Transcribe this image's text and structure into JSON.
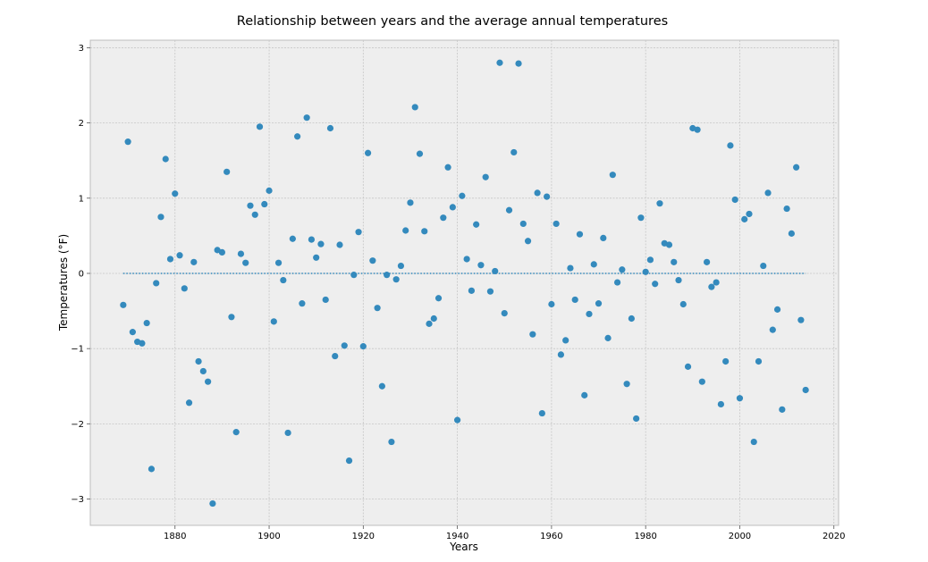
{
  "chart_data": {
    "type": "scatter",
    "title": "Relationship between years and the average annual temperatures",
    "xlabel": "Years",
    "ylabel": "Temperatures (°F)",
    "xlim": [
      1862,
      2021
    ],
    "ylim": [
      -3.35,
      3.1
    ],
    "xticks": [
      1880,
      1900,
      1920,
      1940,
      1960,
      1980,
      2000,
      2020
    ],
    "yticks": [
      -3,
      -2,
      -1,
      0,
      1,
      2,
      3
    ],
    "grid": true,
    "point_color": "#348abd",
    "reference_line": {
      "y": 0,
      "x_range": [
        1869,
        2014
      ],
      "style": "dotted",
      "color": "#348abd"
    },
    "points": [
      [
        1869,
        -0.42
      ],
      [
        1870,
        1.75
      ],
      [
        1871,
        -0.78
      ],
      [
        1872,
        -0.91
      ],
      [
        1873,
        -0.93
      ],
      [
        1874,
        -0.66
      ],
      [
        1875,
        -2.6
      ],
      [
        1876,
        -0.13
      ],
      [
        1877,
        0.75
      ],
      [
        1878,
        1.52
      ],
      [
        1879,
        0.19
      ],
      [
        1880,
        1.06
      ],
      [
        1881,
        0.24
      ],
      [
        1882,
        -0.2
      ],
      [
        1883,
        -1.72
      ],
      [
        1884,
        0.15
      ],
      [
        1885,
        -1.17
      ],
      [
        1886,
        -1.3
      ],
      [
        1887,
        -1.44
      ],
      [
        1888,
        -3.06
      ],
      [
        1889,
        0.31
      ],
      [
        1890,
        0.28
      ],
      [
        1891,
        1.35
      ],
      [
        1892,
        -0.58
      ],
      [
        1893,
        -2.11
      ],
      [
        1894,
        0.26
      ],
      [
        1895,
        0.14
      ],
      [
        1896,
        0.9
      ],
      [
        1897,
        0.78
      ],
      [
        1898,
        1.95
      ],
      [
        1899,
        0.92
      ],
      [
        1900,
        1.1
      ],
      [
        1901,
        -0.64
      ],
      [
        1902,
        0.14
      ],
      [
        1903,
        -0.09
      ],
      [
        1904,
        -2.12
      ],
      [
        1905,
        0.46
      ],
      [
        1906,
        1.82
      ],
      [
        1907,
        -0.4
      ],
      [
        1908,
        2.07
      ],
      [
        1909,
        0.45
      ],
      [
        1910,
        0.21
      ],
      [
        1911,
        0.39
      ],
      [
        1912,
        -0.35
      ],
      [
        1913,
        1.93
      ],
      [
        1914,
        -1.1
      ],
      [
        1915,
        0.38
      ],
      [
        1916,
        -0.96
      ],
      [
        1917,
        -2.49
      ],
      [
        1918,
        -0.02
      ],
      [
        1919,
        0.55
      ],
      [
        1920,
        -0.97
      ],
      [
        1921,
        1.6
      ],
      [
        1922,
        0.17
      ],
      [
        1923,
        -0.46
      ],
      [
        1924,
        -1.5
      ],
      [
        1925,
        -0.02
      ],
      [
        1926,
        -2.24
      ],
      [
        1927,
        -0.08
      ],
      [
        1928,
        0.1
      ],
      [
        1929,
        0.57
      ],
      [
        1930,
        0.94
      ],
      [
        1931,
        2.21
      ],
      [
        1932,
        1.59
      ],
      [
        1933,
        0.56
      ],
      [
        1934,
        -0.67
      ],
      [
        1935,
        -0.6
      ],
      [
        1936,
        -0.33
      ],
      [
        1937,
        0.74
      ],
      [
        1938,
        1.41
      ],
      [
        1939,
        0.88
      ],
      [
        1940,
        -1.95
      ],
      [
        1941,
        1.03
      ],
      [
        1942,
        0.19
      ],
      [
        1943,
        -0.23
      ],
      [
        1944,
        0.65
      ],
      [
        1945,
        0.11
      ],
      [
        1946,
        1.28
      ],
      [
        1947,
        -0.24
      ],
      [
        1948,
        0.03
      ],
      [
        1949,
        2.8
      ],
      [
        1950,
        -0.53
      ],
      [
        1951,
        0.84
      ],
      [
        1952,
        1.61
      ],
      [
        1953,
        2.79
      ],
      [
        1954,
        0.66
      ],
      [
        1955,
        0.43
      ],
      [
        1956,
        -0.81
      ],
      [
        1957,
        1.07
      ],
      [
        1958,
        -1.86
      ],
      [
        1959,
        1.02
      ],
      [
        1960,
        -0.41
      ],
      [
        1961,
        0.66
      ],
      [
        1962,
        -1.08
      ],
      [
        1963,
        -0.89
      ],
      [
        1964,
        0.07
      ],
      [
        1965,
        -0.35
      ],
      [
        1966,
        0.52
      ],
      [
        1967,
        -1.62
      ],
      [
        1968,
        -0.54
      ],
      [
        1969,
        0.12
      ],
      [
        1970,
        -0.4
      ],
      [
        1971,
        0.47
      ],
      [
        1972,
        -0.86
      ],
      [
        1973,
        1.31
      ],
      [
        1974,
        -0.12
      ],
      [
        1975,
        0.05
      ],
      [
        1976,
        -1.47
      ],
      [
        1977,
        -0.6
      ],
      [
        1978,
        -1.93
      ],
      [
        1979,
        0.74
      ],
      [
        1980,
        0.02
      ],
      [
        1981,
        0.18
      ],
      [
        1982,
        -0.14
      ],
      [
        1983,
        0.93
      ],
      [
        1984,
        0.4
      ],
      [
        1985,
        0.38
      ],
      [
        1986,
        0.15
      ],
      [
        1987,
        -0.09
      ],
      [
        1988,
        -0.41
      ],
      [
        1989,
        -1.24
      ],
      [
        1990,
        1.93
      ],
      [
        1991,
        1.91
      ],
      [
        1992,
        -1.44
      ],
      [
        1993,
        0.15
      ],
      [
        1994,
        -0.18
      ],
      [
        1995,
        -0.12
      ],
      [
        1996,
        -1.74
      ],
      [
        1997,
        -1.17
      ],
      [
        1998,
        1.7
      ],
      [
        1999,
        0.98
      ],
      [
        2000,
        -1.66
      ],
      [
        2001,
        0.72
      ],
      [
        2002,
        0.79
      ],
      [
        2003,
        -2.24
      ],
      [
        2004,
        -1.17
      ],
      [
        2005,
        0.1
      ],
      [
        2006,
        1.07
      ],
      [
        2007,
        -0.75
      ],
      [
        2008,
        -0.48
      ],
      [
        2009,
        -1.81
      ],
      [
        2010,
        0.86
      ],
      [
        2011,
        0.53
      ],
      [
        2012,
        1.41
      ],
      [
        2013,
        -0.62
      ],
      [
        2014,
        -1.55
      ]
    ]
  }
}
